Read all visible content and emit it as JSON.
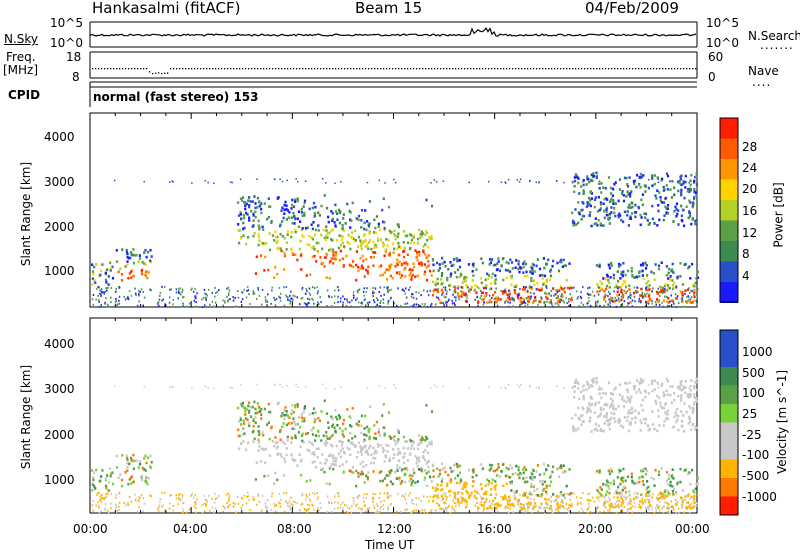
{
  "header": {
    "station": "Hankasalmi (fitACF)",
    "beam": "Beam 15",
    "date": "04/Feb/2009"
  },
  "noise_panel": {
    "left_label": "N.Sky",
    "right_label": "N.Search",
    "left_ticks": [
      "10^5",
      "10^0"
    ],
    "right_ticks": [
      "10^5",
      "10^0"
    ]
  },
  "freq_panel": {
    "left_label_line1": "Freq.",
    "left_label_line2": "[MHz]",
    "right_label": "Nave",
    "left_ticks": [
      "18",
      "8"
    ],
    "right_ticks": [
      "60",
      "0"
    ]
  },
  "cpid_panel": {
    "label": "CPID",
    "text": "normal (fast stereo) 153"
  },
  "x_axis": {
    "label": "Time UT",
    "ticks": [
      "00:00",
      "04:00",
      "08:00",
      "12:00",
      "16:00",
      "20:00",
      "00:00"
    ]
  },
  "colors": {
    "power_scale": [
      "#1a1aff",
      "#2850c8",
      "#3c8c50",
      "#5aa046",
      "#b4d228",
      "#ffd200",
      "#ff9600",
      "#ff5a00",
      "#ff1e00"
    ],
    "velocity_scale": [
      "#2850c8",
      "#3c8c50",
      "#5aa046",
      "#78d23c",
      "#c8c8c8",
      "#c8c8c8",
      "#ffb400",
      "#ff7800",
      "#ff1e00"
    ]
  },
  "chart_data": [
    {
      "type": "heatmap",
      "title": "",
      "xlabel": "Time UT",
      "ylabel": "Slant Range [km]",
      "y_ticks": [
        "1000",
        "2000",
        "3000",
        "4000"
      ],
      "colorbar": {
        "label": "Power [dB]",
        "ticks": [
          "4",
          "8",
          "12",
          "16",
          "20",
          "24",
          "28"
        ]
      },
      "echo_regions": [
        {
          "t_start": 0.0,
          "t_end": 0.9,
          "r_start": 700,
          "r_end": 1200,
          "level": "medium"
        },
        {
          "t_start": 1.0,
          "t_end": 2.4,
          "r_start": 800,
          "r_end": 1500,
          "level": "high"
        },
        {
          "t_start": 5.8,
          "t_end": 13.5,
          "r_start": 800,
          "r_end": 2700,
          "level": "high"
        },
        {
          "t_start": 13.5,
          "t_end": 19.0,
          "r_start": 300,
          "r_end": 1300,
          "level": "high"
        },
        {
          "t_start": 20.0,
          "t_end": 24.0,
          "r_start": 300,
          "r_end": 1200,
          "level": "high"
        },
        {
          "t_start": 19.0,
          "t_end": 24.0,
          "r_start": 2000,
          "r_end": 3200,
          "level": "low"
        }
      ]
    },
    {
      "type": "heatmap",
      "title": "",
      "xlabel": "Time UT",
      "ylabel": "Slant Range [km]",
      "y_ticks": [
        "1000",
        "2000",
        "3000",
        "4000"
      ],
      "colorbar": {
        "label": "Velocity [m s^-1]",
        "ticks": [
          "1000",
          "500",
          "100",
          "25",
          "-25",
          "-100",
          "-500",
          "-1000"
        ]
      }
    }
  ]
}
